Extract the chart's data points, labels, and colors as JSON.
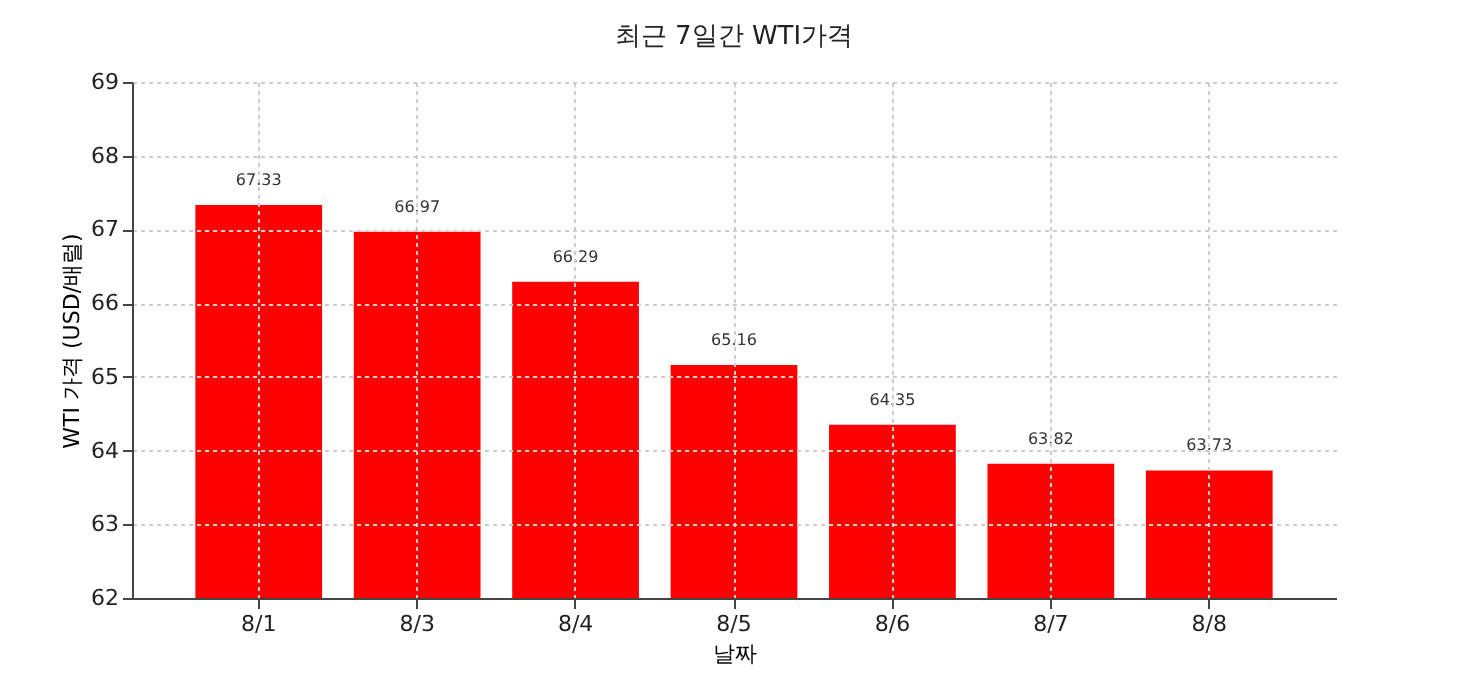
{
  "chart_data": {
    "type": "bar",
    "title": "최근 7일간 WTI가격",
    "xlabel": "날짜",
    "ylabel": "WTI 가격 (USD/배럴)",
    "categories": [
      "8/1",
      "8/3",
      "8/4",
      "8/5",
      "8/6",
      "8/7",
      "8/8"
    ],
    "values": [
      67.33,
      66.97,
      66.29,
      65.16,
      64.35,
      63.82,
      63.73
    ],
    "color": "#ff0000",
    "ylim": [
      62,
      69
    ],
    "yticks": [
      62,
      63,
      64,
      65,
      66,
      67,
      68,
      69
    ],
    "grid": true,
    "data_labels": true
  }
}
